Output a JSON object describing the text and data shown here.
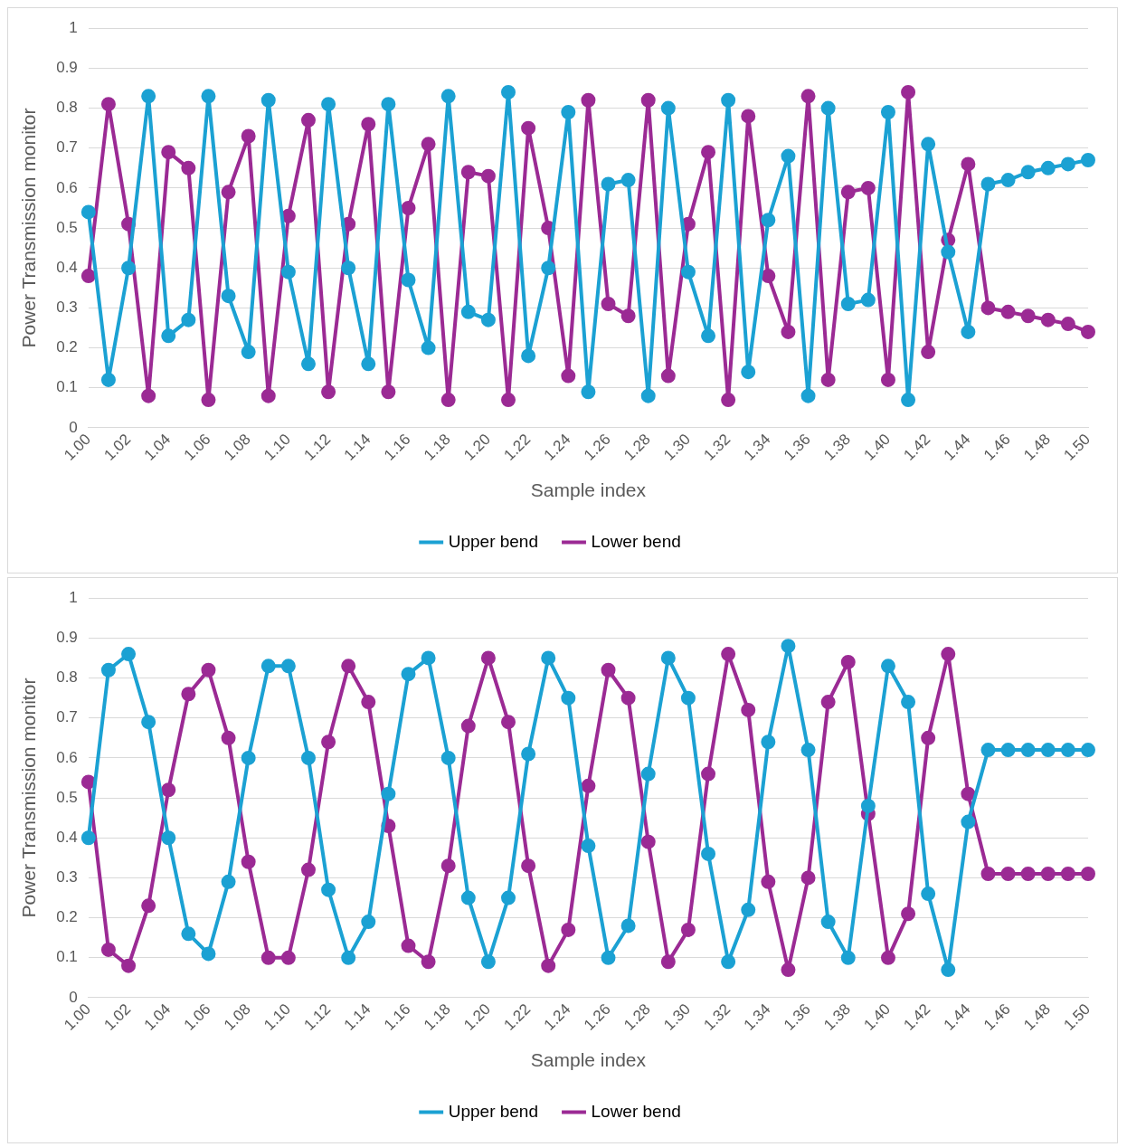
{
  "chart_data": [
    {
      "type": "line",
      "xlabel": "Sample index",
      "ylabel": "Power Transmission monitor",
      "categories": [
        "1.00",
        null,
        "1.02",
        null,
        "1.04",
        null,
        "1.06",
        null,
        "1.08",
        null,
        "1.10",
        null,
        "1.12",
        null,
        "1.14",
        null,
        "1.16",
        null,
        "1.18",
        null,
        "1.20",
        null,
        "1.22",
        null,
        "1.24",
        null,
        "1.26",
        null,
        "1.28",
        null,
        "1.30",
        null,
        "1.32",
        null,
        "1.34",
        null,
        "1.36",
        null,
        "1.38",
        null,
        "1.40",
        null,
        "1.42",
        null,
        "1.44",
        null,
        "1.46",
        null,
        "1.48",
        null,
        "1.50"
      ],
      "series": [
        {
          "name": "Upper bend",
          "color": "#1ba1d3",
          "values": [
            0.54,
            0.12,
            0.4,
            0.83,
            0.23,
            0.27,
            0.83,
            0.33,
            0.19,
            0.82,
            0.39,
            0.16,
            0.81,
            0.4,
            0.16,
            0.81,
            0.37,
            0.2,
            0.83,
            0.29,
            0.27,
            0.84,
            0.18,
            0.4,
            0.79,
            0.09,
            0.61,
            0.62,
            0.08,
            0.8,
            0.39,
            0.23,
            0.82,
            0.14,
            0.52,
            0.68,
            0.08,
            0.8,
            0.31,
            0.32,
            0.79,
            0.07,
            0.71,
            0.44,
            0.24,
            0.61,
            0.62,
            0.64,
            0.65,
            0.66,
            0.67
          ]
        },
        {
          "name": "Lower bend",
          "color": "#9b2a94",
          "values": [
            0.38,
            0.81,
            0.51,
            0.08,
            0.69,
            0.65,
            0.07,
            0.59,
            0.73,
            0.08,
            0.53,
            0.77,
            0.09,
            0.51,
            0.76,
            0.09,
            0.55,
            0.71,
            0.07,
            0.64,
            0.63,
            0.07,
            0.75,
            0.5,
            0.13,
            0.82,
            0.31,
            0.28,
            0.82,
            0.13,
            0.51,
            0.69,
            0.07,
            0.78,
            0.38,
            0.24,
            0.83,
            0.12,
            0.59,
            0.6,
            0.12,
            0.84,
            0.19,
            0.47,
            0.66,
            0.3,
            0.29,
            0.28,
            0.27,
            0.26,
            0.24
          ]
        }
      ],
      "ylim": [
        0,
        1
      ],
      "yticks": [
        0,
        0.1,
        0.2,
        0.3,
        0.4,
        0.5,
        0.6,
        0.7,
        0.8,
        0.9,
        1
      ],
      "grid": "y",
      "legend": "bottom",
      "marker": "circle",
      "line_style": "solid"
    },
    {
      "type": "line",
      "xlabel": "Sample index",
      "ylabel": "Power Transmission monitor",
      "categories": [
        "1.00",
        null,
        "1.02",
        null,
        "1.04",
        null,
        "1.06",
        null,
        "1.08",
        null,
        "1.10",
        null,
        "1.12",
        null,
        "1.14",
        null,
        "1.16",
        null,
        "1.18",
        null,
        "1.20",
        null,
        "1.22",
        null,
        "1.24",
        null,
        "1.26",
        null,
        "1.28",
        null,
        "1.30",
        null,
        "1.32",
        null,
        "1.34",
        null,
        "1.36",
        null,
        "1.38",
        null,
        "1.40",
        null,
        "1.42",
        null,
        "1.44",
        null,
        "1.46",
        null,
        "1.48",
        null,
        "1.50"
      ],
      "series": [
        {
          "name": "Upper bend",
          "color": "#1ba1d3",
          "values": [
            0.4,
            0.82,
            0.86,
            0.69,
            0.4,
            0.16,
            0.11,
            0.29,
            0.6,
            0.83,
            0.83,
            0.6,
            0.27,
            0.1,
            0.19,
            0.51,
            0.81,
            0.85,
            0.6,
            0.25,
            0.09,
            0.25,
            0.61,
            0.85,
            0.75,
            0.38,
            0.1,
            0.18,
            0.56,
            0.85,
            0.75,
            0.36,
            0.09,
            0.22,
            0.64,
            0.88,
            0.62,
            0.19,
            0.1,
            0.48,
            0.83,
            0.74,
            0.26,
            0.07,
            0.44,
            0.62,
            0.62,
            0.62,
            0.62,
            0.62,
            0.62
          ]
        },
        {
          "name": "Lower bend",
          "color": "#9b2a94",
          "values": [
            0.54,
            0.12,
            0.08,
            0.23,
            0.52,
            0.76,
            0.82,
            0.65,
            0.34,
            0.1,
            0.1,
            0.32,
            0.64,
            0.83,
            0.74,
            0.43,
            0.13,
            0.09,
            0.33,
            0.68,
            0.85,
            0.69,
            0.33,
            0.08,
            0.17,
            0.53,
            0.82,
            0.75,
            0.39,
            0.09,
            0.17,
            0.56,
            0.86,
            0.72,
            0.29,
            0.07,
            0.3,
            0.74,
            0.84,
            0.46,
            0.1,
            0.21,
            0.65,
            0.86,
            0.51,
            0.31,
            0.31,
            0.31,
            0.31,
            0.31,
            0.31
          ]
        }
      ],
      "ylim": [
        0,
        1
      ],
      "yticks": [
        0,
        0.1,
        0.2,
        0.3,
        0.4,
        0.5,
        0.6,
        0.7,
        0.8,
        0.9,
        1
      ],
      "grid": "y",
      "legend": "bottom",
      "marker": "circle",
      "line_style": "solid"
    }
  ]
}
